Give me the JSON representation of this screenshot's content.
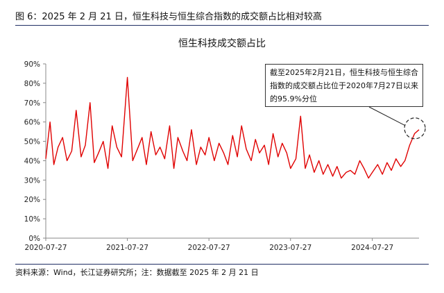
{
  "figure": {
    "label": "图 6：2025 年 2 月 21 日，恒生科技与恒生综合指数的成交额占比相对较高"
  },
  "source_note": "资料来源：Wind，长江证券研究所；注：数据截至 2025 年 2 月 21 日",
  "colors": {
    "series": "#e00000",
    "axis": "#888888",
    "rule": "#1f2d63"
  },
  "chart_data": {
    "type": "line",
    "title": "恒生科技成交额占比",
    "x_ticks": [
      "2020-07-27",
      "2021-07-27",
      "2022-07-27",
      "2023-07-27",
      "2024-07-27"
    ],
    "x_range": [
      "2020-07-27",
      "2025-02-21"
    ],
    "y_ticks": [
      "0%",
      "10%",
      "20%",
      "30%",
      "40%",
      "50%",
      "60%",
      "70%",
      "80%",
      "90%"
    ],
    "ylim": [
      0,
      90
    ],
    "y_unit": "%",
    "grid": false,
    "annotation": "截至2025年2月21日，恒生科技与恒生综合指数的成交额占比位于2020年7月27日以来的95.9%分位",
    "series": [
      {
        "x": [
          "2020-07-27",
          "2020-08-15",
          "2020-09-01",
          "2020-09-20",
          "2020-10-10",
          "2020-10-30",
          "2020-11-20",
          "2020-12-10",
          "2021-01-01",
          "2021-01-20",
          "2021-02-10",
          "2021-03-01",
          "2021-03-20",
          "2021-04-10",
          "2021-05-01",
          "2021-05-20",
          "2021-06-10",
          "2021-07-01",
          "2021-07-27",
          "2021-08-20",
          "2021-09-10",
          "2021-10-01",
          "2021-10-20",
          "2021-11-10",
          "2021-12-01",
          "2021-12-20",
          "2022-01-10",
          "2022-02-01",
          "2022-02-20",
          "2022-03-10",
          "2022-04-01",
          "2022-04-20",
          "2022-05-10",
          "2022-06-01",
          "2022-06-20",
          "2022-07-10",
          "2022-07-27",
          "2022-08-20",
          "2022-09-10",
          "2022-10-01",
          "2022-10-20",
          "2022-11-10",
          "2022-12-01",
          "2022-12-20",
          "2023-01-10",
          "2023-02-01",
          "2023-02-20",
          "2023-03-10",
          "2023-04-01",
          "2023-04-20",
          "2023-05-10",
          "2023-06-01",
          "2023-06-20",
          "2023-07-10",
          "2023-07-27",
          "2023-08-20",
          "2023-09-10",
          "2023-10-01",
          "2023-10-20",
          "2023-11-10",
          "2023-12-01",
          "2023-12-20",
          "2024-01-10",
          "2024-02-01",
          "2024-02-20",
          "2024-03-10",
          "2024-04-01",
          "2024-04-20",
          "2024-05-10",
          "2024-06-01",
          "2024-06-20",
          "2024-07-10",
          "2024-07-27",
          "2024-08-20",
          "2024-09-10",
          "2024-10-01",
          "2024-10-20",
          "2024-11-10",
          "2024-12-01",
          "2024-12-20",
          "2025-01-10",
          "2025-02-01",
          "2025-02-21"
        ],
        "values": [
          41,
          60,
          38,
          47,
          52,
          40,
          45,
          66,
          42,
          48,
          70,
          39,
          44,
          50,
          36,
          58,
          47,
          42,
          83,
          40,
          46,
          52,
          38,
          55,
          43,
          47,
          41,
          58,
          36,
          52,
          45,
          40,
          56,
          38,
          47,
          43,
          52,
          40,
          49,
          44,
          38,
          53,
          42,
          58,
          46,
          40,
          51,
          44,
          48,
          38,
          54,
          42,
          49,
          44,
          36,
          41,
          63,
          36,
          43,
          34,
          40,
          33,
          38,
          32,
          37,
          31,
          34,
          35,
          33,
          40,
          36,
          31,
          34,
          38,
          33,
          39,
          35,
          41,
          37,
          40,
          48,
          54,
          56
        ]
      }
    ]
  }
}
